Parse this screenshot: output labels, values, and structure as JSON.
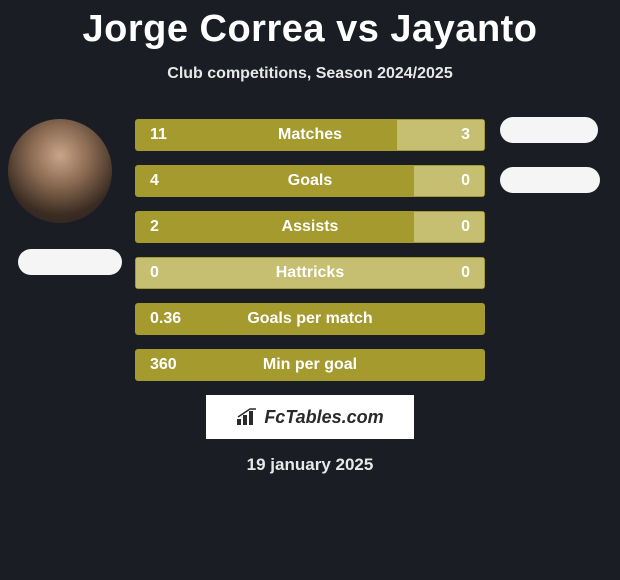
{
  "colors": {
    "bg": "#1a1d24",
    "barMain": "#a59a2e",
    "barSecondary": "#c6be70",
    "barBorder": "#a59a2e",
    "flag": "#f5f5f5",
    "text": "#ffffff"
  },
  "title": "Jorge Correa vs Jayanto",
  "subtitle": "Club competitions, Season 2024/2025",
  "date": "19 january 2025",
  "branding": "FcTables.com",
  "stats": [
    {
      "label": "Matches",
      "leftVal": "11",
      "rightVal": "3",
      "leftPct": 75,
      "rightPct": 25,
      "colorLeft": "#a59a2e",
      "colorRight": "#c6be70"
    },
    {
      "label": "Goals",
      "leftVal": "4",
      "rightVal": "0",
      "leftPct": 80,
      "rightPct": 20,
      "colorLeft": "#a59a2e",
      "colorRight": "#c6be70"
    },
    {
      "label": "Assists",
      "leftVal": "2",
      "rightVal": "0",
      "leftPct": 80,
      "rightPct": 20,
      "colorLeft": "#a59a2e",
      "colorRight": "#c6be70"
    },
    {
      "label": "Hattricks",
      "leftVal": "0",
      "rightVal": "0",
      "leftPct": 80,
      "rightPct": 20,
      "colorLeft": "#c6be70",
      "colorRight": "#c6be70"
    },
    {
      "label": "Goals per match",
      "leftVal": "0.36",
      "rightVal": "",
      "leftPct": 100,
      "rightPct": 0,
      "colorLeft": "#a59a2e",
      "colorRight": "#a59a2e"
    },
    {
      "label": "Min per goal",
      "leftVal": "360",
      "rightVal": "",
      "leftPct": 100,
      "rightPct": 0,
      "colorLeft": "#a59a2e",
      "colorRight": "#a59a2e"
    }
  ]
}
